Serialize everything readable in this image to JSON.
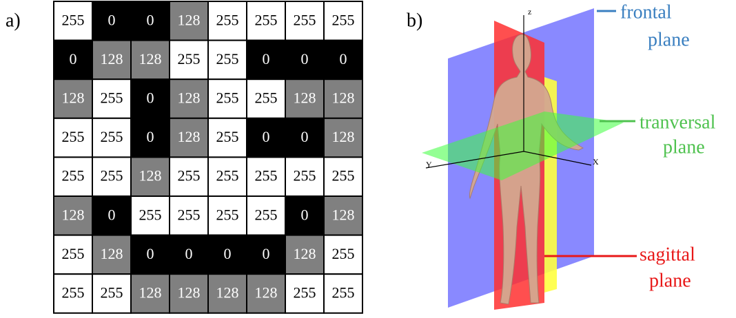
{
  "panel_a": {
    "label": "a)",
    "grid": [
      [
        255,
        0,
        0,
        128,
        255,
        255,
        255,
        255
      ],
      [
        0,
        128,
        128,
        255,
        255,
        0,
        0,
        0
      ],
      [
        128,
        255,
        0,
        128,
        255,
        255,
        128,
        128
      ],
      [
        255,
        255,
        0,
        128,
        255,
        0,
        0,
        128
      ],
      [
        255,
        255,
        128,
        255,
        255,
        255,
        255,
        255
      ],
      [
        128,
        0,
        255,
        255,
        255,
        255,
        0,
        128
      ],
      [
        255,
        128,
        0,
        0,
        0,
        0,
        128,
        255
      ],
      [
        255,
        255,
        128,
        128,
        128,
        128,
        255,
        255
      ]
    ]
  },
  "panel_b": {
    "label": "b)",
    "axes": {
      "z": "z",
      "y": "Y",
      "x": "X"
    },
    "planes": [
      {
        "lines": [
          "frontal",
          "plane"
        ]
      },
      {
        "lines": [
          "tranversal",
          "plane"
        ]
      },
      {
        "lines": [
          "sagittal",
          "plane"
        ]
      }
    ]
  }
}
